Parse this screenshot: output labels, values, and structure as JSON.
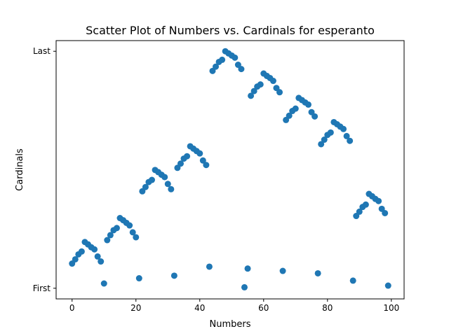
{
  "chart_data": {
    "type": "scatter",
    "title": "Scatter Plot of Numbers vs. Cardinals for esperanto",
    "xlabel": "Numbers",
    "ylabel": "Cardinals",
    "xlim": [
      -5,
      104
    ],
    "ylim": [
      -0.045,
      1.045
    ],
    "xticks": [
      0,
      20,
      40,
      60,
      80,
      100
    ],
    "yticks": [
      {
        "value": 0,
        "label": "First"
      },
      {
        "value": 1,
        "label": "Last"
      }
    ],
    "grid": false,
    "marker_color": "#1f77b4",
    "x": [
      0,
      1,
      2,
      3,
      4,
      5,
      6,
      7,
      8,
      9,
      10,
      11,
      12,
      13,
      14,
      15,
      16,
      17,
      18,
      19,
      20,
      21,
      22,
      23,
      24,
      25,
      26,
      27,
      28,
      29,
      30,
      31,
      32,
      33,
      34,
      35,
      36,
      37,
      38,
      39,
      40,
      41,
      42,
      43,
      44,
      45,
      46,
      47,
      48,
      49,
      50,
      51,
      52,
      53,
      54,
      55,
      56,
      57,
      58,
      59,
      60,
      61,
      62,
      63,
      64,
      65,
      66,
      67,
      68,
      69,
      70,
      71,
      72,
      73,
      74,
      75,
      76,
      77,
      78,
      79,
      80,
      81,
      82,
      83,
      84,
      85,
      86,
      87,
      88,
      89,
      90,
      91,
      92,
      93,
      94,
      95,
      96,
      97,
      98,
      99
    ],
    "y": [
      0.104,
      0.122,
      0.143,
      0.155,
      0.195,
      0.185,
      0.173,
      0.164,
      0.134,
      0.113,
      0.02,
      0.203,
      0.224,
      0.245,
      0.254,
      0.296,
      0.287,
      0.276,
      0.265,
      0.236,
      0.215,
      0.042,
      0.409,
      0.427,
      0.448,
      0.457,
      0.499,
      0.49,
      0.479,
      0.469,
      0.44,
      0.418,
      0.053,
      0.508,
      0.526,
      0.547,
      0.557,
      0.599,
      0.589,
      0.579,
      0.569,
      0.539,
      0.52,
      0.091,
      0.917,
      0.935,
      0.955,
      0.964,
      1.0,
      0.991,
      0.982,
      0.973,
      0.943,
      0.925,
      0.004,
      0.083,
      0.812,
      0.832,
      0.851,
      0.86,
      0.906,
      0.896,
      0.887,
      0.875,
      0.845,
      0.827,
      0.073,
      0.71,
      0.728,
      0.748,
      0.758,
      0.803,
      0.794,
      0.784,
      0.775,
      0.743,
      0.725,
      0.063,
      0.608,
      0.627,
      0.647,
      0.657,
      0.701,
      0.692,
      0.682,
      0.672,
      0.642,
      0.622,
      0.032,
      0.305,
      0.323,
      0.343,
      0.353,
      0.398,
      0.388,
      0.377,
      0.368,
      0.335,
      0.317,
      0.011
    ]
  }
}
